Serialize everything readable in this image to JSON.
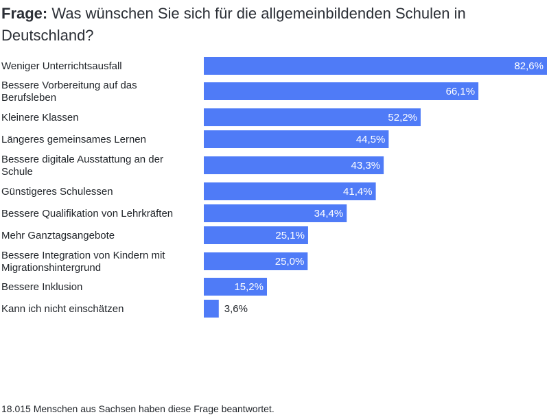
{
  "title": {
    "prefix": "Frage:",
    "text": "Was wünschen Sie sich für die allgemeinbildenden Schulen in Deutschland?"
  },
  "footer": "18.015 Menschen aus Sachsen haben diese Frage beantwortet.",
  "colors": {
    "bar": "#4f7bf7",
    "label_inside": "#ffffff",
    "label_outside": "#1f2328"
  },
  "chart_data": {
    "type": "bar",
    "orientation": "horizontal",
    "categories": [
      "Weniger Unterrichtsausfall",
      "Bessere Vorbereitung auf das Berufsleben",
      "Kleinere Klassen",
      "Längeres gemeinsames Lernen",
      "Bessere digitale Ausstattung an der Schule",
      "Günstigeres Schulessen",
      "Bessere Qualifikation von Lehrkräften",
      "Mehr Ganztagsangebote",
      "Bessere Integration von Kindern mit Migrationshintergrund",
      "Bessere Inklusion",
      "Kann ich nicht einschätzen"
    ],
    "category_lines": [
      [
        "Weniger Unterrichtsausfall"
      ],
      [
        "Bessere Vorbereitung auf das",
        "Berufsleben"
      ],
      [
        "Kleinere Klassen"
      ],
      [
        "Längeres gemeinsames Lernen"
      ],
      [
        "Bessere digitale Ausstattung an der",
        "Schule"
      ],
      [
        "Günstigeres Schulessen"
      ],
      [
        "Bessere Qualifikation von Lehrkräften"
      ],
      [
        "Mehr Ganztagsangebote"
      ],
      [
        "Bessere Integration von Kindern mit",
        "Migrationshintergrund"
      ],
      [
        "Bessere Inklusion"
      ],
      [
        "Kann ich nicht einschätzen"
      ]
    ],
    "values": [
      82.6,
      66.1,
      52.2,
      44.5,
      43.3,
      41.4,
      34.4,
      25.1,
      25.0,
      15.2,
      3.6
    ],
    "value_labels": [
      "82,6%",
      "66,1%",
      "52,2%",
      "44,5%",
      "43,3%",
      "41,4%",
      "34,4%",
      "25,1%",
      "25,0%",
      "15,2%",
      "3,6%"
    ],
    "xlim": [
      0,
      82.6
    ],
    "grid": false,
    "legend": "none"
  }
}
